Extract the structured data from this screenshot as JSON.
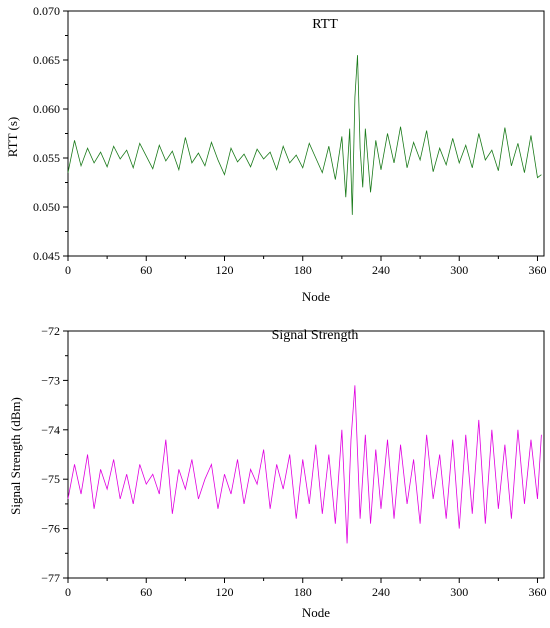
{
  "chart_data": [
    {
      "type": "line",
      "title": "RTT",
      "xlabel": "Node",
      "ylabel": "RTT (s)",
      "xlim": [
        0,
        365
      ],
      "ylim": [
        0.045,
        0.07
      ],
      "xticks": [
        0,
        60,
        120,
        180,
        240,
        300,
        360
      ],
      "yticks": [
        0.045,
        0.05,
        0.055,
        0.06,
        0.065,
        0.07
      ],
      "xtick_labels": [
        "0",
        "60",
        "120",
        "180",
        "240",
        "300",
        "360"
      ],
      "ytick_labels": [
        "0.045",
        "0.050",
        "0.055",
        "0.060",
        "0.065",
        "0.070"
      ],
      "grid": false,
      "color": "#1a7a1a",
      "series": [
        {
          "x": [
            0,
            5,
            10,
            15,
            20,
            25,
            30,
            35,
            40,
            45,
            50,
            55,
            60,
            65,
            70,
            75,
            80,
            85,
            90,
            95,
            100,
            105,
            110,
            115,
            120,
            125,
            130,
            135,
            140,
            145,
            150,
            155,
            160,
            165,
            170,
            175,
            180,
            185,
            190,
            195,
            200,
            205,
            210,
            213,
            216,
            218,
            220,
            222,
            224,
            226,
            228,
            232,
            236,
            240,
            245,
            250,
            255,
            260,
            265,
            270,
            275,
            280,
            285,
            290,
            295,
            300,
            305,
            310,
            315,
            320,
            325,
            330,
            335,
            340,
            345,
            350,
            355,
            360,
            363
          ],
          "values": [
            0.0535,
            0.0568,
            0.0542,
            0.056,
            0.0545,
            0.0556,
            0.0541,
            0.0562,
            0.0549,
            0.0558,
            0.054,
            0.0565,
            0.0552,
            0.0539,
            0.0563,
            0.0547,
            0.0557,
            0.0538,
            0.0571,
            0.0545,
            0.0555,
            0.0542,
            0.0566,
            0.0548,
            0.0533,
            0.056,
            0.0546,
            0.0554,
            0.0541,
            0.0559,
            0.0549,
            0.0556,
            0.0538,
            0.0562,
            0.0545,
            0.0553,
            0.054,
            0.0565,
            0.055,
            0.0535,
            0.0562,
            0.0528,
            0.0572,
            0.051,
            0.058,
            0.0492,
            0.0612,
            0.0655,
            0.056,
            0.052,
            0.058,
            0.0515,
            0.0568,
            0.0538,
            0.0575,
            0.0545,
            0.0582,
            0.054,
            0.0566,
            0.0548,
            0.0578,
            0.0536,
            0.056,
            0.0543,
            0.057,
            0.0545,
            0.0563,
            0.054,
            0.0575,
            0.0548,
            0.0558,
            0.0537,
            0.0581,
            0.0542,
            0.0565,
            0.0535,
            0.0573,
            0.053,
            0.0533
          ]
        }
      ]
    },
    {
      "type": "line",
      "title": "Signal Strength",
      "xlabel": "Node",
      "ylabel": "Signal Strength (dBm)",
      "xlim": [
        0,
        365
      ],
      "ylim": [
        -77,
        -72
      ],
      "xticks": [
        0,
        60,
        120,
        180,
        240,
        300,
        360
      ],
      "yticks": [
        -77,
        -76,
        -75,
        -74,
        -73,
        -72
      ],
      "xtick_labels": [
        "0",
        "60",
        "120",
        "180",
        "240",
        "300",
        "360"
      ],
      "ytick_labels": [
        "−77",
        "−76",
        "−75",
        "−74",
        "−73",
        "−72"
      ],
      "grid": false,
      "color": "#e000e0",
      "series": [
        {
          "x": [
            0,
            5,
            10,
            15,
            20,
            25,
            30,
            35,
            40,
            45,
            50,
            55,
            60,
            65,
            70,
            75,
            80,
            85,
            90,
            95,
            100,
            105,
            110,
            115,
            120,
            125,
            130,
            135,
            140,
            145,
            150,
            155,
            160,
            165,
            170,
            175,
            180,
            185,
            190,
            195,
            200,
            205,
            210,
            214,
            217,
            220,
            224,
            228,
            232,
            236,
            240,
            245,
            250,
            255,
            260,
            265,
            270,
            275,
            280,
            285,
            290,
            295,
            300,
            305,
            310,
            315,
            320,
            325,
            330,
            335,
            340,
            345,
            350,
            355,
            360,
            363
          ],
          "values": [
            -75.4,
            -74.7,
            -75.3,
            -74.5,
            -75.6,
            -74.8,
            -75.2,
            -74.6,
            -75.4,
            -74.9,
            -75.5,
            -74.7,
            -75.1,
            -74.9,
            -75.3,
            -74.2,
            -75.7,
            -74.8,
            -75.2,
            -74.6,
            -75.4,
            -75.0,
            -74.7,
            -75.6,
            -74.9,
            -75.3,
            -74.6,
            -75.5,
            -74.8,
            -75.1,
            -74.4,
            -75.6,
            -74.7,
            -75.2,
            -74.5,
            -75.8,
            -74.6,
            -75.5,
            -74.3,
            -75.7,
            -74.5,
            -75.9,
            -74.0,
            -76.3,
            -74.2,
            -73.1,
            -75.8,
            -74.1,
            -75.9,
            -74.4,
            -75.6,
            -74.2,
            -75.8,
            -74.3,
            -75.5,
            -74.6,
            -75.9,
            -74.1,
            -75.4,
            -74.5,
            -75.8,
            -74.2,
            -76.0,
            -74.1,
            -75.7,
            -73.8,
            -75.9,
            -74.0,
            -75.6,
            -74.3,
            -75.8,
            -74.0,
            -75.5,
            -74.2,
            -75.4,
            -74.1
          ]
        }
      ]
    }
  ]
}
